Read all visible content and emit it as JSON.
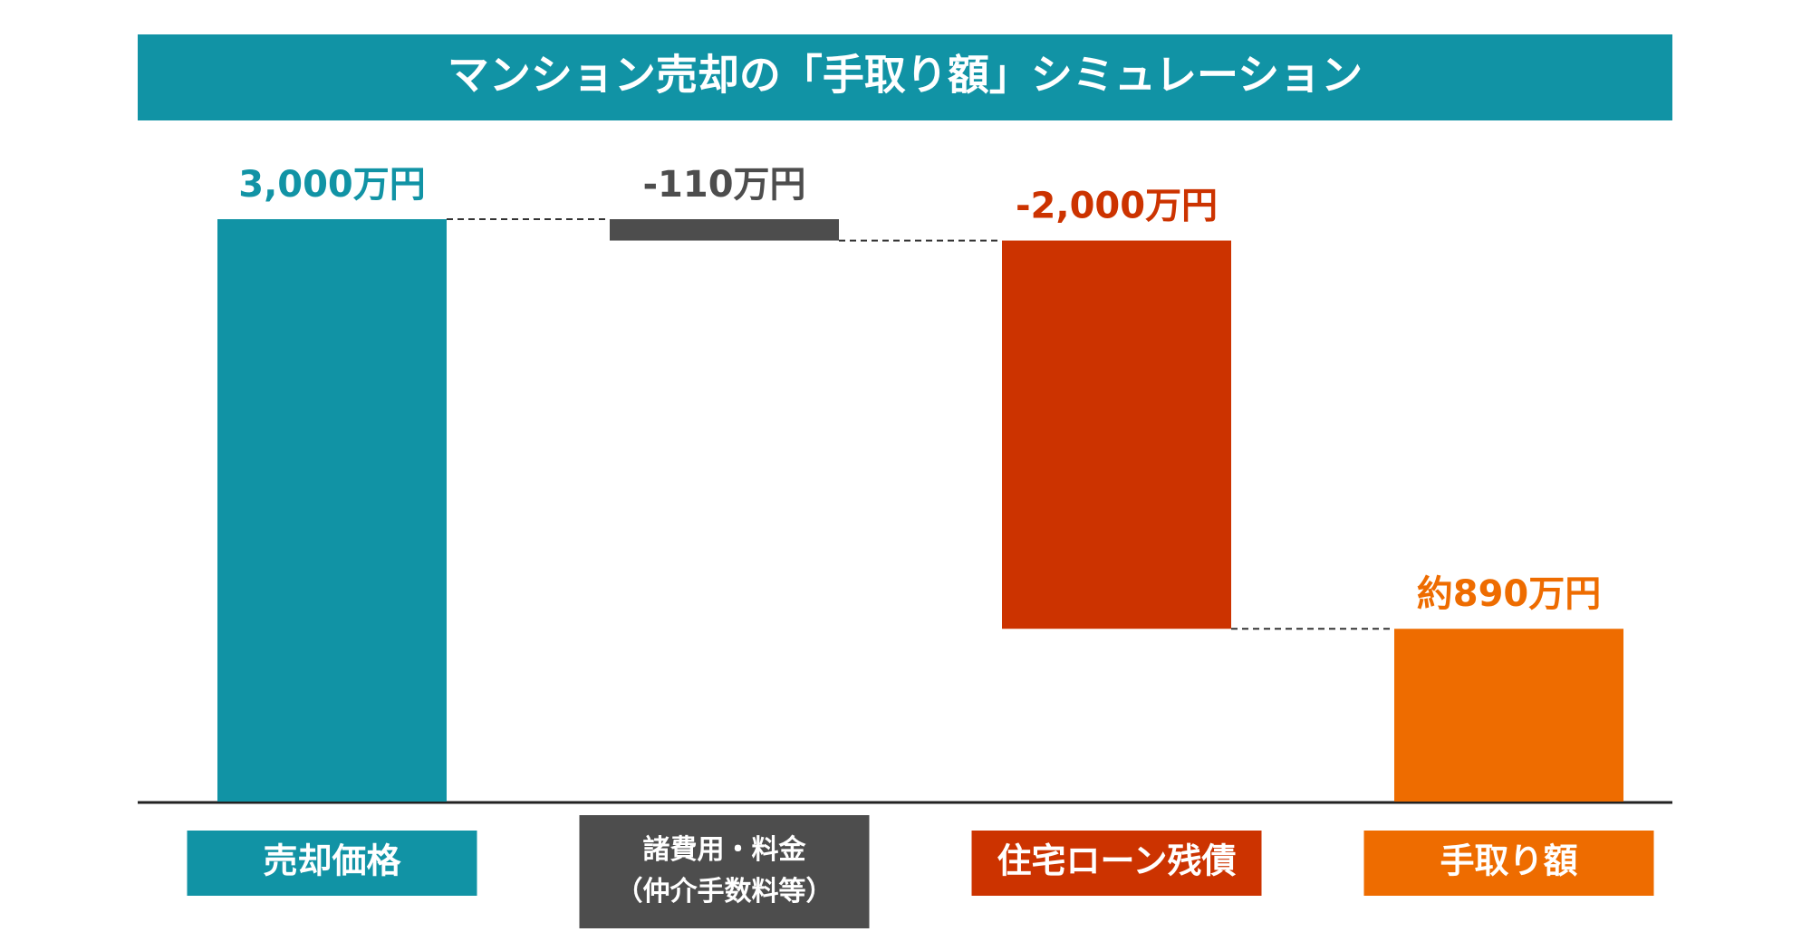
{
  "chart_data": {
    "type": "waterfall",
    "title": "マンション売却の「手取り額」シミュレーション",
    "categories": [
      [
        "売却価格"
      ],
      [
        "諸費用・料金",
        "（仲介手数料等）"
      ],
      [
        "住宅ローン残債"
      ],
      [
        "手取り額"
      ]
    ],
    "values": [
      3000,
      -110,
      -2000,
      890
    ],
    "value_labels": [
      "3,000万円",
      "-110万円",
      "-2,000万円",
      "約890万円"
    ],
    "colors": [
      "#1193a5",
      "#4d4d4d",
      "#cc3300",
      "#ee6c00"
    ]
  }
}
